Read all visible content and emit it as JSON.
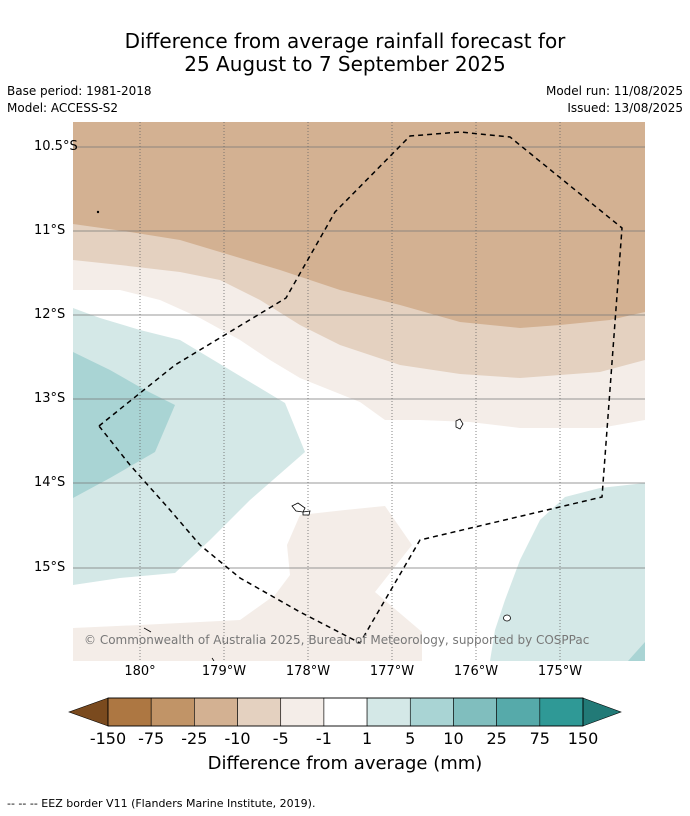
{
  "title": {
    "line1": "Difference from average rainfall forecast for",
    "line2": "25 August to 7 September 2025"
  },
  "meta": {
    "base_period": "Base period: 1981-2018",
    "model": "Model: ACCESS-S2",
    "model_run": "Model run: 11/08/2025",
    "issued": "Issued: 13/08/2025"
  },
  "map": {
    "lat_labels": [
      "10.5°S",
      "11°S",
      "12°S",
      "13°S",
      "14°S",
      "15°S"
    ],
    "lon_labels": [
      "180°",
      "179°W",
      "178°W",
      "177°W",
      "176°W",
      "175°W"
    ],
    "copyright": "© Commonwealth of Australia 2025, Bureau of Meteorology, supported by COSPPac",
    "eez_border": "dashed"
  },
  "colorbar": {
    "ticks": [
      "-150",
      "-75",
      "-25",
      "-10",
      "-5",
      "-1",
      "1",
      "5",
      "10",
      "25",
      "75",
      "150"
    ],
    "colors": [
      "#7a4a1e",
      "#ad7742",
      "#c19467",
      "#d3b192",
      "#e4d1c0",
      "#f4ede8",
      "#ffffff",
      "#d4e8e7",
      "#a9d4d4",
      "#80bebe",
      "#56aaaa",
      "#2f9996",
      "#227a77"
    ],
    "label": "Difference from average (mm)"
  },
  "footnote": "-- -- -- EEZ border V11 (Flanders Marine Institute, 2019)."
}
